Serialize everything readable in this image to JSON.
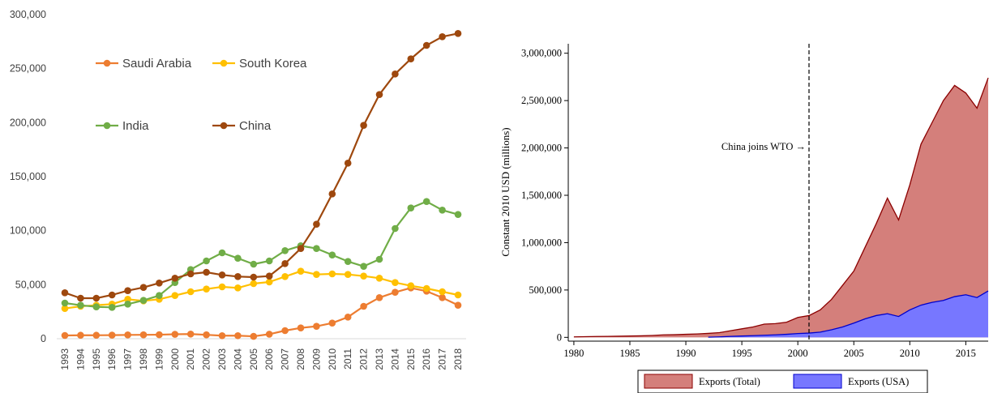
{
  "chart_data": [
    {
      "type": "line",
      "x": [
        1993,
        1994,
        1995,
        1996,
        1997,
        1998,
        1999,
        2000,
        2001,
        2002,
        2003,
        2004,
        2005,
        2006,
        2007,
        2008,
        2009,
        2010,
        2011,
        2012,
        2013,
        2014,
        2015,
        2016,
        2017,
        2018
      ],
      "ylim": [
        0,
        300000
      ],
      "yticks": [
        0,
        50000,
        100000,
        150000,
        200000,
        250000,
        300000
      ],
      "ytick_labels": [
        "0",
        "50,000",
        "100,000",
        "150,000",
        "200,000",
        "250,000",
        "300,000"
      ],
      "grid": false,
      "legend_placement": "top-left",
      "series": [
        {
          "name": "Saudi Arabia",
          "color": "#ED7D31",
          "values": [
            3000,
            3200,
            3200,
            3300,
            3500,
            3600,
            3700,
            4100,
            4300,
            3600,
            2800,
            2800,
            2200,
            4200,
            7500,
            10000,
            11500,
            14500,
            20000,
            30000,
            38000,
            43000,
            47000,
            44000,
            38000,
            31000
          ]
        },
        {
          "name": "South Korea",
          "color": "#FFC000",
          "values": [
            28000,
            30000,
            31000,
            32000,
            36500,
            35000,
            36500,
            40000,
            43500,
            46000,
            48000,
            47000,
            51000,
            52500,
            57500,
            62500,
            59500,
            60000,
            59500,
            58000,
            56000,
            52000,
            49000,
            46500,
            43500,
            40500
          ]
        },
        {
          "name": "India",
          "color": "#70AD47",
          "values": [
            33000,
            31000,
            29500,
            29000,
            32000,
            35500,
            40000,
            52000,
            64000,
            72000,
            79500,
            74500,
            69000,
            72000,
            81500,
            86000,
            83500,
            77500,
            71500,
            67000,
            73500,
            102000,
            121000,
            127000,
            119000,
            115000
          ]
        },
        {
          "name": "China",
          "color": "#9E480E",
          "values": [
            42500,
            37500,
            37500,
            40500,
            44500,
            47500,
            51500,
            56000,
            60000,
            61500,
            59000,
            57500,
            57000,
            58000,
            69500,
            83500,
            106000,
            134000,
            162500,
            197500,
            226000,
            245000,
            259000,
            271500,
            279500,
            282500
          ]
        }
      ]
    },
    {
      "type": "area",
      "ylabel": "Constant 2010 USD (millions)",
      "xlim": [
        1979.5,
        2017
      ],
      "ylim": [
        -40000,
        3100000
      ],
      "xticks": [
        1980,
        1985,
        1990,
        1995,
        2000,
        2005,
        2010,
        2015
      ],
      "yticks": [
        0,
        500000,
        1000000,
        1500000,
        2000000,
        2500000,
        3000000
      ],
      "ytick_labels": [
        "0",
        "500,000",
        "1,000,000",
        "1,500,000",
        "2,000,000",
        "2,500,000",
        "3,000,000"
      ],
      "grid": false,
      "legend_placement": "bottom",
      "annotation": {
        "text": "China joins WTO →",
        "x": 2001
      },
      "series": [
        {
          "name": "Exports (Total)",
          "fill": "#D47F7B",
          "stroke": "#8B0000",
          "x": [
            1980,
            1981,
            1982,
            1983,
            1984,
            1985,
            1986,
            1987,
            1988,
            1989,
            1990,
            1991,
            1992,
            1993,
            1994,
            1995,
            1996,
            1997,
            1998,
            1999,
            2000,
            2001,
            2002,
            2003,
            2004,
            2005,
            2006,
            2007,
            2008,
            2009,
            2010,
            2011,
            2012,
            2013,
            2014,
            2015,
            2016,
            2017
          ],
          "values": [
            5000,
            7000,
            9000,
            10000,
            12000,
            14000,
            16000,
            20000,
            26000,
            28000,
            32000,
            36000,
            42000,
            50000,
            70000,
            90000,
            110000,
            140000,
            145000,
            160000,
            210000,
            230000,
            290000,
            400000,
            550000,
            700000,
            950000,
            1200000,
            1470000,
            1240000,
            1610000,
            2040000,
            2270000,
            2500000,
            2660000,
            2580000,
            2420000,
            2740000
          ]
        },
        {
          "name": "Exports (USA)",
          "fill": "#7777FF",
          "stroke": "#0000CC",
          "x": [
            1992,
            1993,
            1994,
            1995,
            1996,
            1997,
            1998,
            1999,
            2000,
            2001,
            2002,
            2003,
            2004,
            2005,
            2006,
            2007,
            2008,
            2009,
            2010,
            2011,
            2012,
            2013,
            2014,
            2015,
            2016,
            2017
          ],
          "values": [
            2000,
            5000,
            10000,
            14000,
            18000,
            22000,
            26000,
            32000,
            40000,
            45000,
            55000,
            80000,
            110000,
            150000,
            195000,
            230000,
            250000,
            220000,
            290000,
            340000,
            370000,
            390000,
            430000,
            450000,
            420000,
            490000
          ]
        }
      ]
    }
  ]
}
